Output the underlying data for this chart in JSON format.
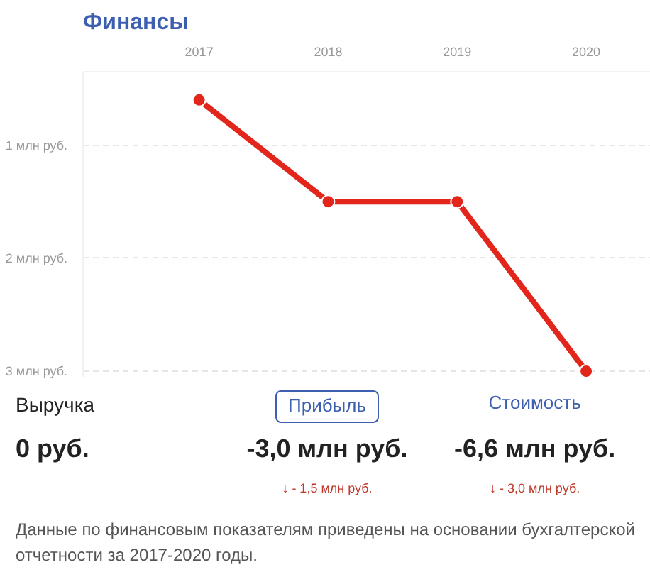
{
  "chart_data": {
    "type": "line",
    "title": "Финансы",
    "categories": [
      "2017",
      "2018",
      "2019",
      "2020"
    ],
    "series": [
      {
        "color": "#e3261c",
        "values": [
          -0.6,
          -1.5,
          -1.5,
          -3.0
        ]
      }
    ],
    "ylim": [
      -3.05,
      -0.35
    ],
    "yticks": [
      {
        "value": -1,
        "label": "1 млн руб."
      },
      {
        "value": -2,
        "label": "2 млн руб."
      },
      {
        "value": -3,
        "label": "3 млн руб."
      }
    ],
    "grid": "y",
    "marker": "circle",
    "line_style": "solid",
    "annotations": [
      "Выручка",
      "Прибыль",
      "Стоимость",
      "0 руб.",
      "-3,0 млн руб.",
      "-6,6 млн руб.",
      "↓ - 1,5 млн руб.",
      "↓ - 3,0 млн руб.",
      "Данные по финансовым показателям приведены на основании бухгалтерской отчетности за 2017-2020 годы."
    ]
  }
}
